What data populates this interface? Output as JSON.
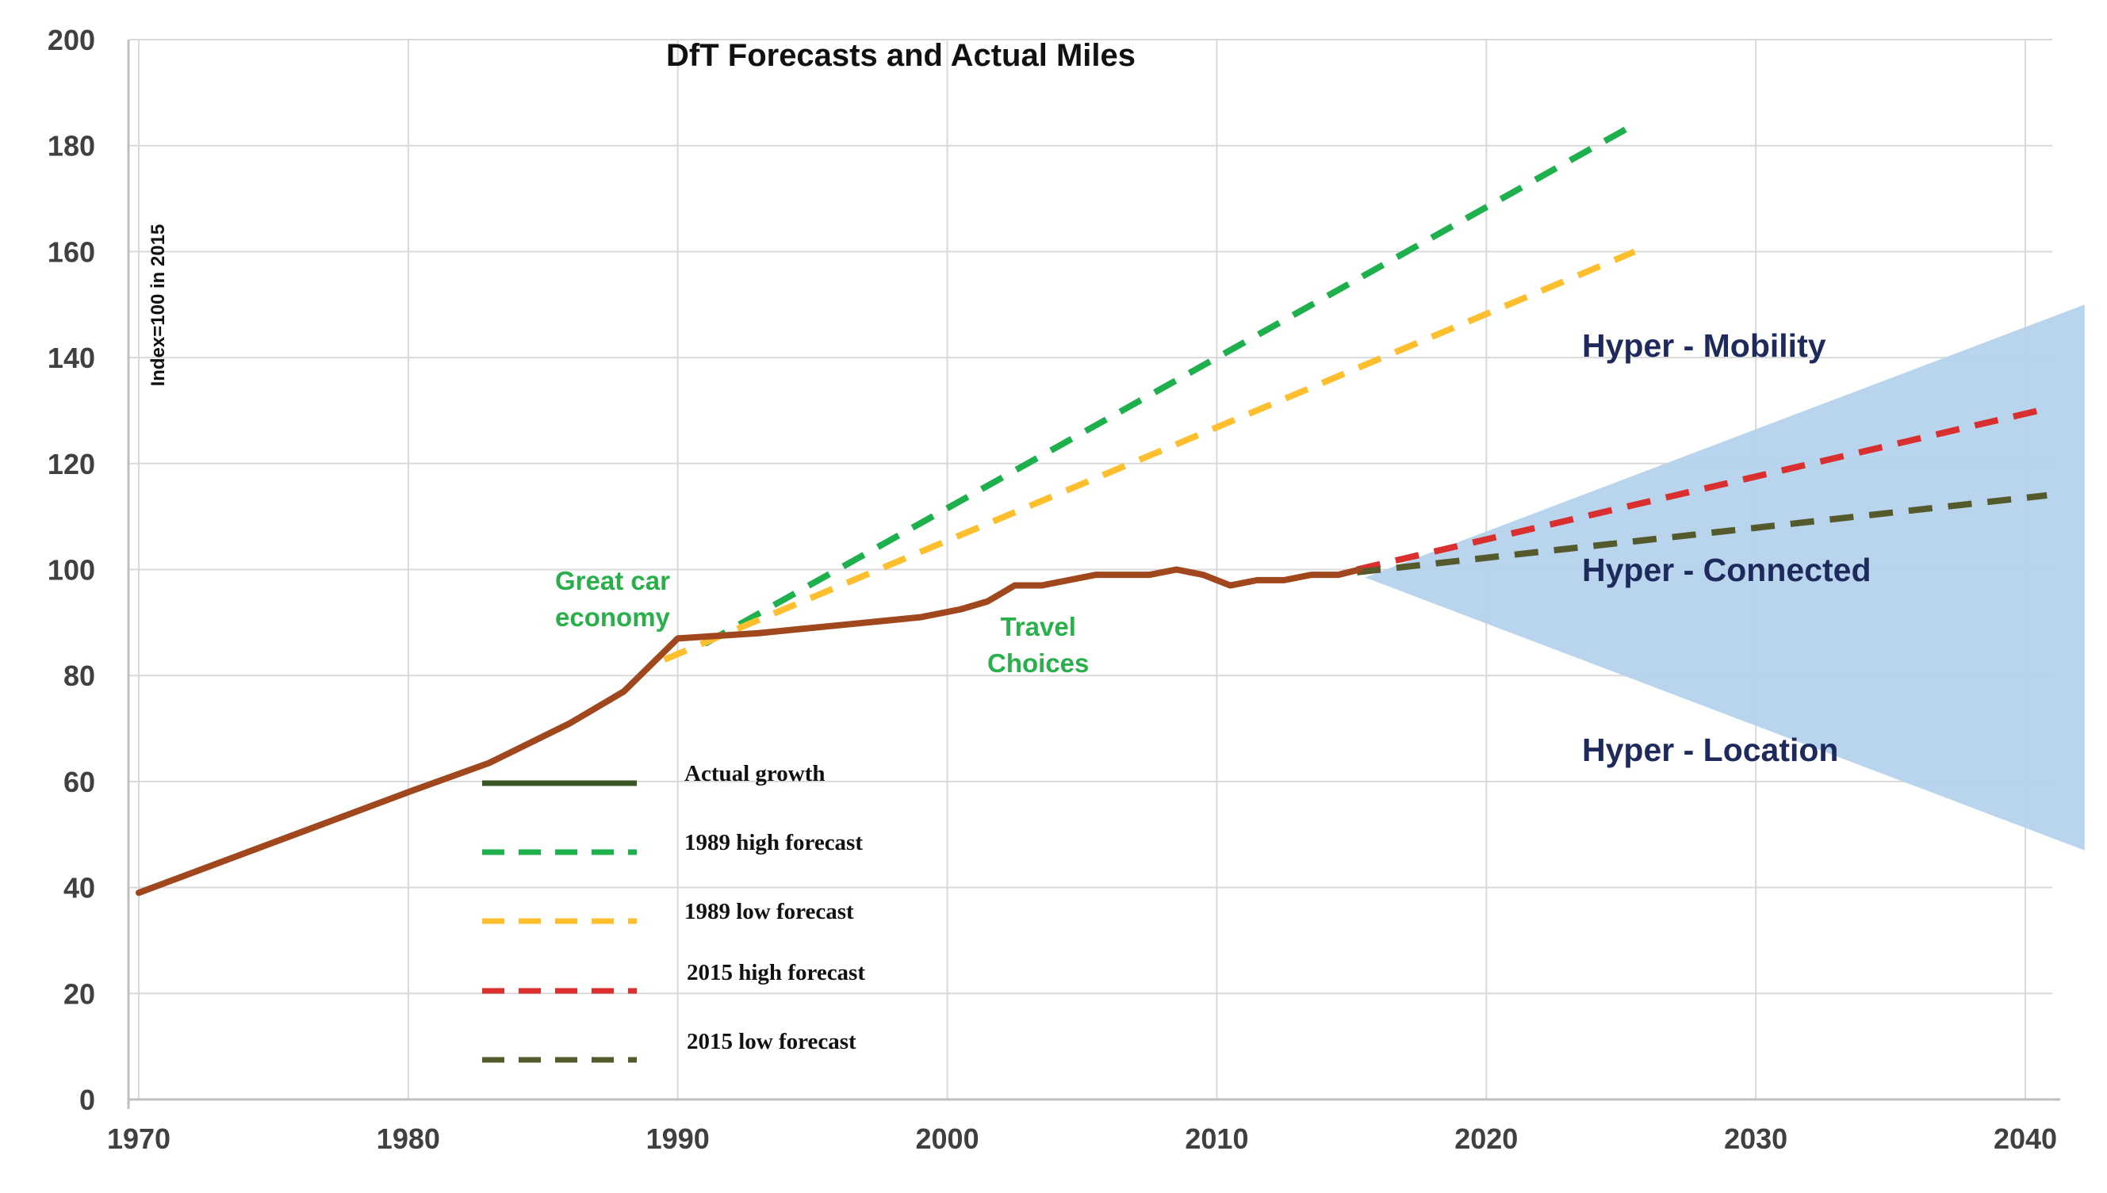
{
  "chart_data": {
    "type": "line",
    "title": "DfT Forecasts and Actual Miles",
    "ylabel": "Index=100 in 2015",
    "xlabel": "",
    "xlim": [
      1970,
      2041
    ],
    "ylim": [
      0,
      200
    ],
    "x_ticks": [
      "1970",
      "1980",
      "1990",
      "2000",
      "2010",
      "2020",
      "2030",
      "2040"
    ],
    "y_ticks": [
      "0",
      "20",
      "40",
      "60",
      "80",
      "100",
      "120",
      "140",
      "160",
      "180",
      "200"
    ],
    "grid": true,
    "legend_position": "bottom-left",
    "series": [
      {
        "name": "Actual growth",
        "legend_color": "#375623",
        "color": "#a0471e",
        "dash": "solid",
        "points": [
          [
            1970,
            39
          ],
          [
            1975,
            48.5
          ],
          [
            1980,
            58
          ],
          [
            1983,
            63.5
          ],
          [
            1986,
            71
          ],
          [
            1988,
            77
          ],
          [
            1990,
            87
          ],
          [
            1993,
            88
          ],
          [
            1996,
            89.5
          ],
          [
            1999,
            91
          ],
          [
            2000.5,
            92.5
          ],
          [
            2001.5,
            94
          ],
          [
            2002.5,
            97
          ],
          [
            2003.5,
            97
          ],
          [
            2004.5,
            98
          ],
          [
            2005.5,
            99
          ],
          [
            2007.5,
            99
          ],
          [
            2008.5,
            100
          ],
          [
            2009.5,
            99
          ],
          [
            2010.5,
            97
          ],
          [
            2011.5,
            98
          ],
          [
            2012.5,
            98
          ],
          [
            2013.5,
            99
          ],
          [
            2014.5,
            99
          ],
          [
            2015.3,
            100
          ]
        ]
      },
      {
        "name": "1989 high forecast",
        "color": "#1db04d",
        "dash": "dashed",
        "points": [
          [
            1991,
            86
          ],
          [
            2025.5,
            184
          ]
        ]
      },
      {
        "name": "1989 low forecast",
        "color": "#fdbf2d",
        "dash": "dashed",
        "points": [
          [
            1989.5,
            83
          ],
          [
            2025.5,
            160
          ]
        ]
      },
      {
        "name": "2015 high forecast",
        "color": "#d92f2f",
        "dash": "dashed",
        "points": [
          [
            2015.2,
            100
          ],
          [
            2040.5,
            130
          ]
        ]
      },
      {
        "name": "2015 low forecast",
        "color": "#545a2c",
        "dash": "dashed",
        "points": [
          [
            2015.2,
            99.5
          ],
          [
            2040.8,
            114
          ]
        ]
      }
    ],
    "scenario_fan": {
      "color": "#b5d3ec",
      "points": [
        [
          2015.5,
          98.5
        ],
        [
          2042.2,
          150
        ],
        [
          2042.2,
          47
        ]
      ]
    },
    "annotations": [
      {
        "id": "great-car",
        "lines": [
          "Great car",
          "economy"
        ]
      },
      {
        "id": "travel-choices",
        "lines": [
          "Travel",
          "Choices"
        ]
      },
      {
        "id": "hyper-mobility",
        "text": "Hyper - Mobility"
      },
      {
        "id": "hyper-connected",
        "text": "Hyper - Connected"
      },
      {
        "id": "hyper-location",
        "text": "Hyper - Location"
      }
    ]
  }
}
